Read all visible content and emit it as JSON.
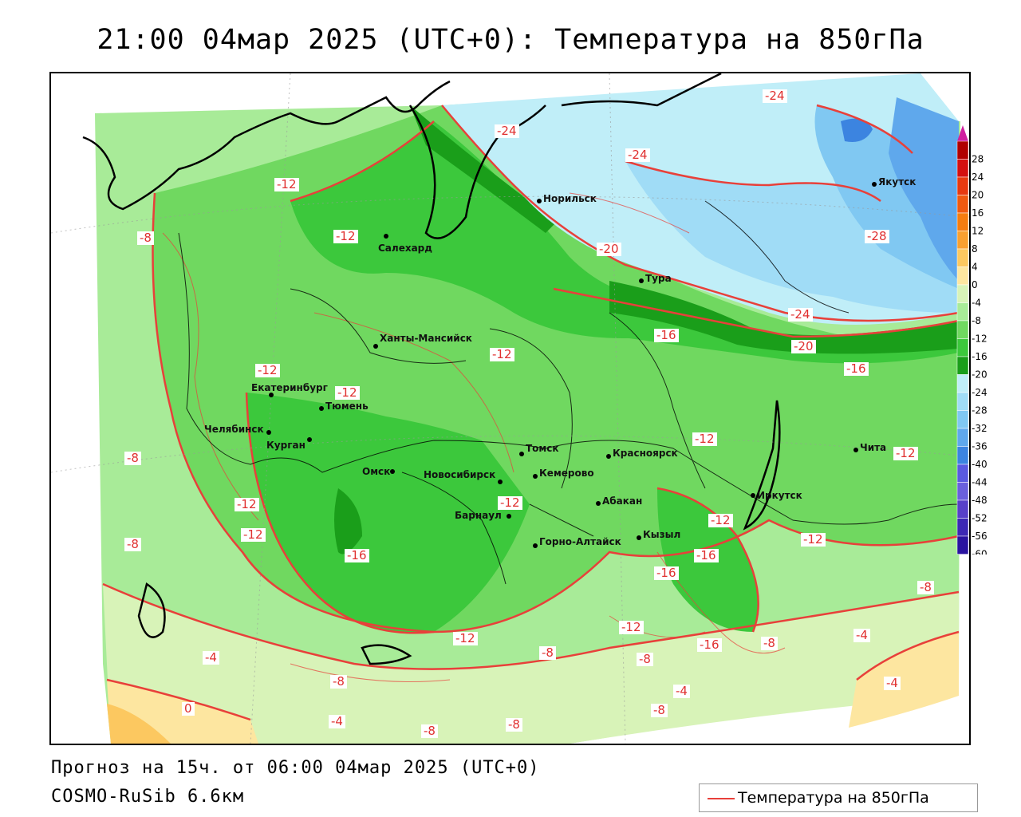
{
  "title": "21:00 04мар 2025 (UTC+0): Температура на 850гПа",
  "footer": {
    "forecast": "Прогноз на 15ч. от 06:00 04мар 2025 (UTC+0)",
    "model": "COSMO-RuSib 6.6км"
  },
  "legend": {
    "label": "Температура на 850гПа",
    "line_color": "#e8403a"
  },
  "scale": {
    "ticks": [
      "28",
      "24",
      "20",
      "16",
      "12",
      "8",
      "4",
      "0",
      "-4",
      "-8",
      "-12",
      "-16",
      "-20",
      "-24",
      "-28",
      "-32",
      "-36",
      "-40",
      "-44",
      "-48",
      "-52",
      "-56",
      "-60"
    ],
    "colors": [
      "#b00000",
      "#d41010",
      "#e83a10",
      "#f05a10",
      "#f57d10",
      "#f9a030",
      "#fcc860",
      "#fde6a0",
      "#d8f3b8",
      "#a8eb98",
      "#70d860",
      "#3cc83c",
      "#1a9e1a",
      "#c0eef8",
      "#a0dcf6",
      "#80c8f2",
      "#5fa8ec",
      "#3c84e0",
      "#5a5ae0",
      "#6a60dc",
      "#5840c8",
      "#3c28b4",
      "#2a14a0",
      "#200c90"
    ]
  },
  "cities": [
    {
      "name": "Норильск"
    },
    {
      "name": "Якутск"
    },
    {
      "name": "Салехард"
    },
    {
      "name": "Тура"
    },
    {
      "name": "Ханты-Мансийск"
    },
    {
      "name": "Екатеринбург"
    },
    {
      "name": "Тюмень"
    },
    {
      "name": "Челябинск"
    },
    {
      "name": "Курган"
    },
    {
      "name": "Омск"
    },
    {
      "name": "Новосибирск"
    },
    {
      "name": "Томск"
    },
    {
      "name": "Кемерово"
    },
    {
      "name": "Красноярск"
    },
    {
      "name": "Барнаул"
    },
    {
      "name": "Абакан"
    },
    {
      "name": "Иркутск"
    },
    {
      "name": "Чита"
    },
    {
      "name": "Кызыл"
    },
    {
      "name": "Горно-Алтайск"
    }
  ],
  "contour_labels": [
    "-24",
    "-24",
    "-24",
    "-28",
    "-12",
    "-8",
    "-12",
    "-20",
    "-16",
    "-24",
    "-20",
    "-16",
    "-12",
    "-12",
    "-12",
    "-8",
    "-12",
    "-12",
    "-12",
    "-12",
    "-12",
    "-16",
    "-16",
    "-16",
    "-12",
    "-8",
    "-8",
    "-12",
    "-12",
    "-8",
    "-4",
    "-4",
    "-8",
    "-8",
    "-4",
    "0",
    "-4",
    "-8",
    "-8",
    "-8",
    "-4",
    "-8",
    "-16",
    "-12"
  ]
}
